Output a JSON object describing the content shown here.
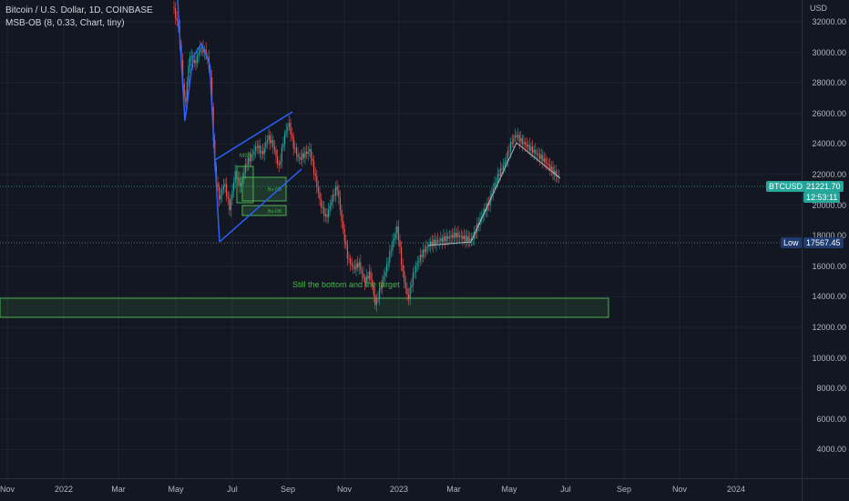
{
  "legend": {
    "symbol_line": "Bitcoin / U.S. Dollar, 1D, COINBASE",
    "indicator_line": "MSB-OB (8, 0.33, Chart, tiny)"
  },
  "price_axis": {
    "unit": "USD",
    "ticks": [
      "32000.00",
      "30000.00",
      "28000.00",
      "26000.00",
      "24000.00",
      "22000.00",
      "20000.00",
      "18000.00",
      "16000.00",
      "14000.00",
      "12000.00",
      "10000.00",
      "8000.00",
      "6000.00",
      "4000.00"
    ]
  },
  "time_axis": {
    "ticks": [
      "Nov",
      "2022",
      "Mar",
      "May",
      "Jul",
      "Sep",
      "Nov",
      "2023",
      "Mar",
      "May",
      "Jul",
      "Sep",
      "Nov",
      "2024"
    ]
  },
  "last_price": {
    "symbol": "BTCUSD",
    "value": "21221.70",
    "countdown": "12:53:11",
    "color": "#26a69a"
  },
  "low_marker": {
    "label": "Low",
    "value": "17567.45",
    "color": "#1e3a6e"
  },
  "annotation": {
    "text": "Still the bottom and the target"
  },
  "boxes": {
    "msb_label": "MSB",
    "ob_label_1": "Bu-OB",
    "ob_label_2": "Bu-OB"
  },
  "colors": {
    "background": "#131722",
    "bull": "#26a69a",
    "bear": "#ef5350",
    "trendline": "#2962ff",
    "zone": "#4caf50"
  }
}
